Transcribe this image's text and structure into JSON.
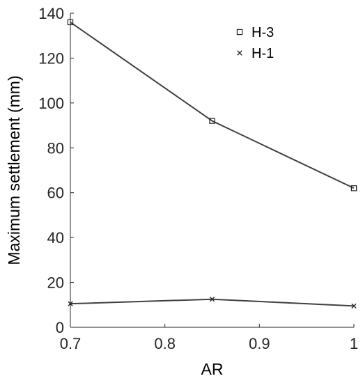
{
  "chart_data": {
    "type": "line",
    "xlabel": "AR",
    "ylabel": "Maximum settlement (mm)",
    "xlim": [
      0.7,
      1
    ],
    "ylim": [
      0,
      140
    ],
    "x_ticks": [
      0.7,
      0.8,
      0.9,
      1
    ],
    "x_tick_labels": [
      "0.7",
      "0.8",
      "0.9",
      "1"
    ],
    "y_ticks": [
      0,
      20,
      40,
      60,
      80,
      100,
      120,
      140
    ],
    "y_tick_labels": [
      "0",
      "20",
      "40",
      "60",
      "80",
      "100",
      "120",
      "140"
    ],
    "grid": false,
    "legend_position": "top-right",
    "series": [
      {
        "name": "H-3",
        "marker": "square",
        "color": "#404040",
        "x": [
          0.7,
          0.85,
          1
        ],
        "y": [
          136,
          92,
          62
        ]
      },
      {
        "name": "H-1",
        "marker": "x",
        "color": "#404040",
        "x": [
          0.7,
          0.85,
          1
        ],
        "y": [
          10.5,
          12.5,
          9.5
        ]
      }
    ]
  }
}
